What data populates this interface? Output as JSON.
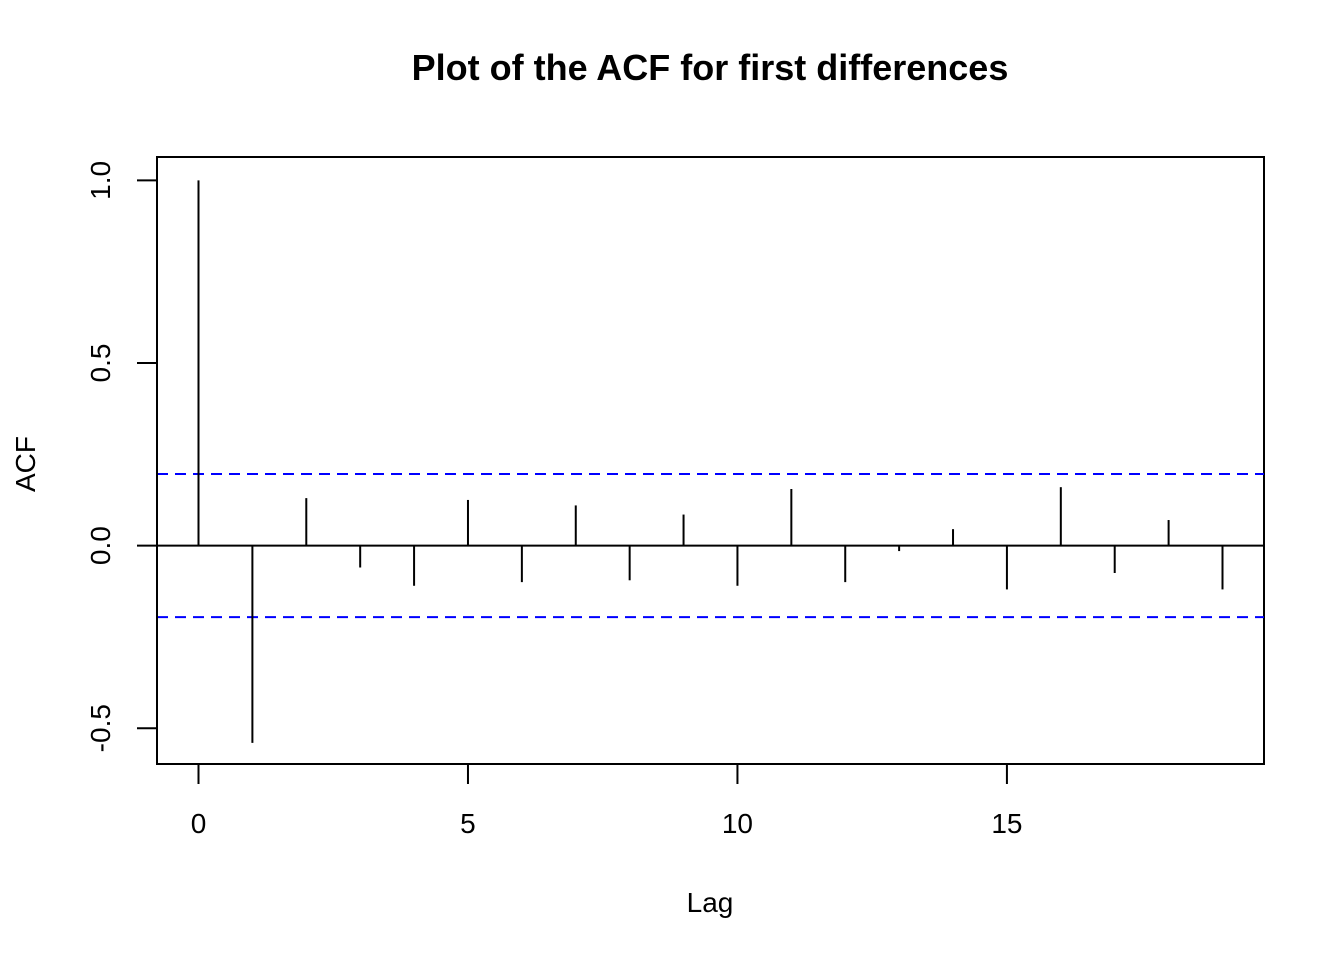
{
  "chart_data": {
    "type": "bar",
    "title": "Plot of the ACF for first differences",
    "xlabel": "Lag",
    "ylabel": "ACF",
    "xlim": [
      -0.77,
      19.77
    ],
    "ylim": [
      -0.598,
      1.064
    ],
    "x_ticks": [
      0,
      5,
      10,
      15
    ],
    "y_ticks": [
      -0.5,
      0.0,
      0.5,
      1.0
    ],
    "x_tick_labels": [
      "0",
      "5",
      "10",
      "15"
    ],
    "y_tick_labels": [
      "-0.5",
      "0.0",
      "0.5",
      "1.0"
    ],
    "lags": [
      0,
      1,
      2,
      3,
      4,
      5,
      6,
      7,
      8,
      9,
      10,
      11,
      12,
      13,
      14,
      15,
      16,
      17,
      18,
      19
    ],
    "values": [
      1.0,
      -0.54,
      0.13,
      -0.06,
      -0.11,
      0.125,
      -0.1,
      0.11,
      -0.095,
      0.085,
      -0.11,
      0.155,
      -0.1,
      -0.015,
      0.045,
      -0.12,
      0.16,
      -0.075,
      0.07,
      -0.12
    ],
    "confidence_band": 0.196,
    "colors": {
      "bars": "#000000",
      "confidence_lines": "#0000ff",
      "zero_line": "#000000",
      "frame": "#000000"
    },
    "grid": false,
    "legend": "none"
  }
}
